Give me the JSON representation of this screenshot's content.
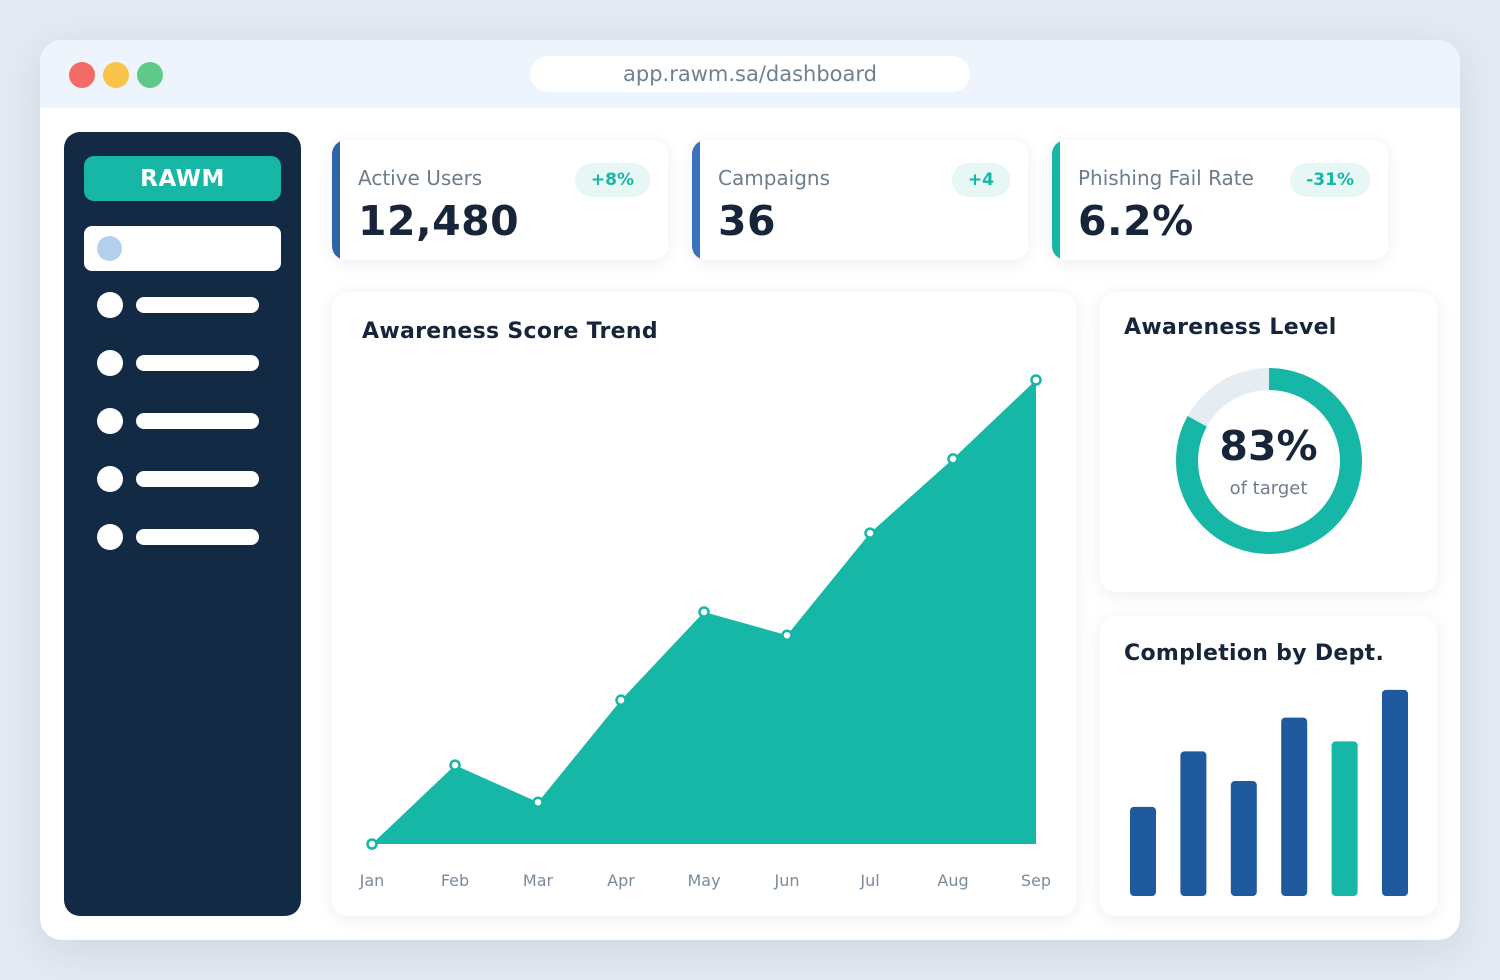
{
  "browser": {
    "url": "app.rawm.sa/dashboard"
  },
  "sidebar": {
    "logo": "RAWM"
  },
  "stats": [
    {
      "label": "Active Users",
      "value": "12,480",
      "badge": "+8%",
      "accent": "#2f64a8"
    },
    {
      "label": "Campaigns",
      "value": "36",
      "badge": "+4",
      "accent": "#3a72bc"
    },
    {
      "label": "Phishing Fail Rate",
      "value": "6.2%",
      "badge": "-31%",
      "accent": "#16b7a6"
    }
  ],
  "trend": {
    "title": "Awareness Score Trend"
  },
  "level": {
    "title": "Awareness Level",
    "value": "83%",
    "subtitle": "of target"
  },
  "dept": {
    "title": "Completion by Dept."
  },
  "colors": {
    "teal": "#16b7a6",
    "navy": "#132a45",
    "blue": "#1f5a9e",
    "track": "#e5edf3"
  },
  "chart_data": [
    {
      "type": "area",
      "title": "Awareness Score Trend",
      "categories": [
        "Jan",
        "Feb",
        "Mar",
        "Apr",
        "May",
        "Jun",
        "Jul",
        "Aug",
        "Sep"
      ],
      "values": [
        0,
        17,
        9,
        31,
        50,
        45,
        67,
        83,
        100
      ],
      "ylim": [
        0,
        100
      ],
      "grid": false,
      "color": "#16b7a6"
    },
    {
      "type": "pie",
      "title": "Awareness Level",
      "values": [
        83,
        17
      ],
      "colors": [
        "#16b7a6",
        "#e5edf3"
      ]
    },
    {
      "type": "bar",
      "title": "Completion by Dept.",
      "values": [
        45,
        73,
        58,
        90,
        78,
        104
      ],
      "ylim": [
        0,
        110
      ],
      "colors": [
        "#1f5a9e",
        "#1f5a9e",
        "#1f5a9e",
        "#1f5a9e",
        "#16b7a6",
        "#1f5a9e"
      ]
    }
  ]
}
